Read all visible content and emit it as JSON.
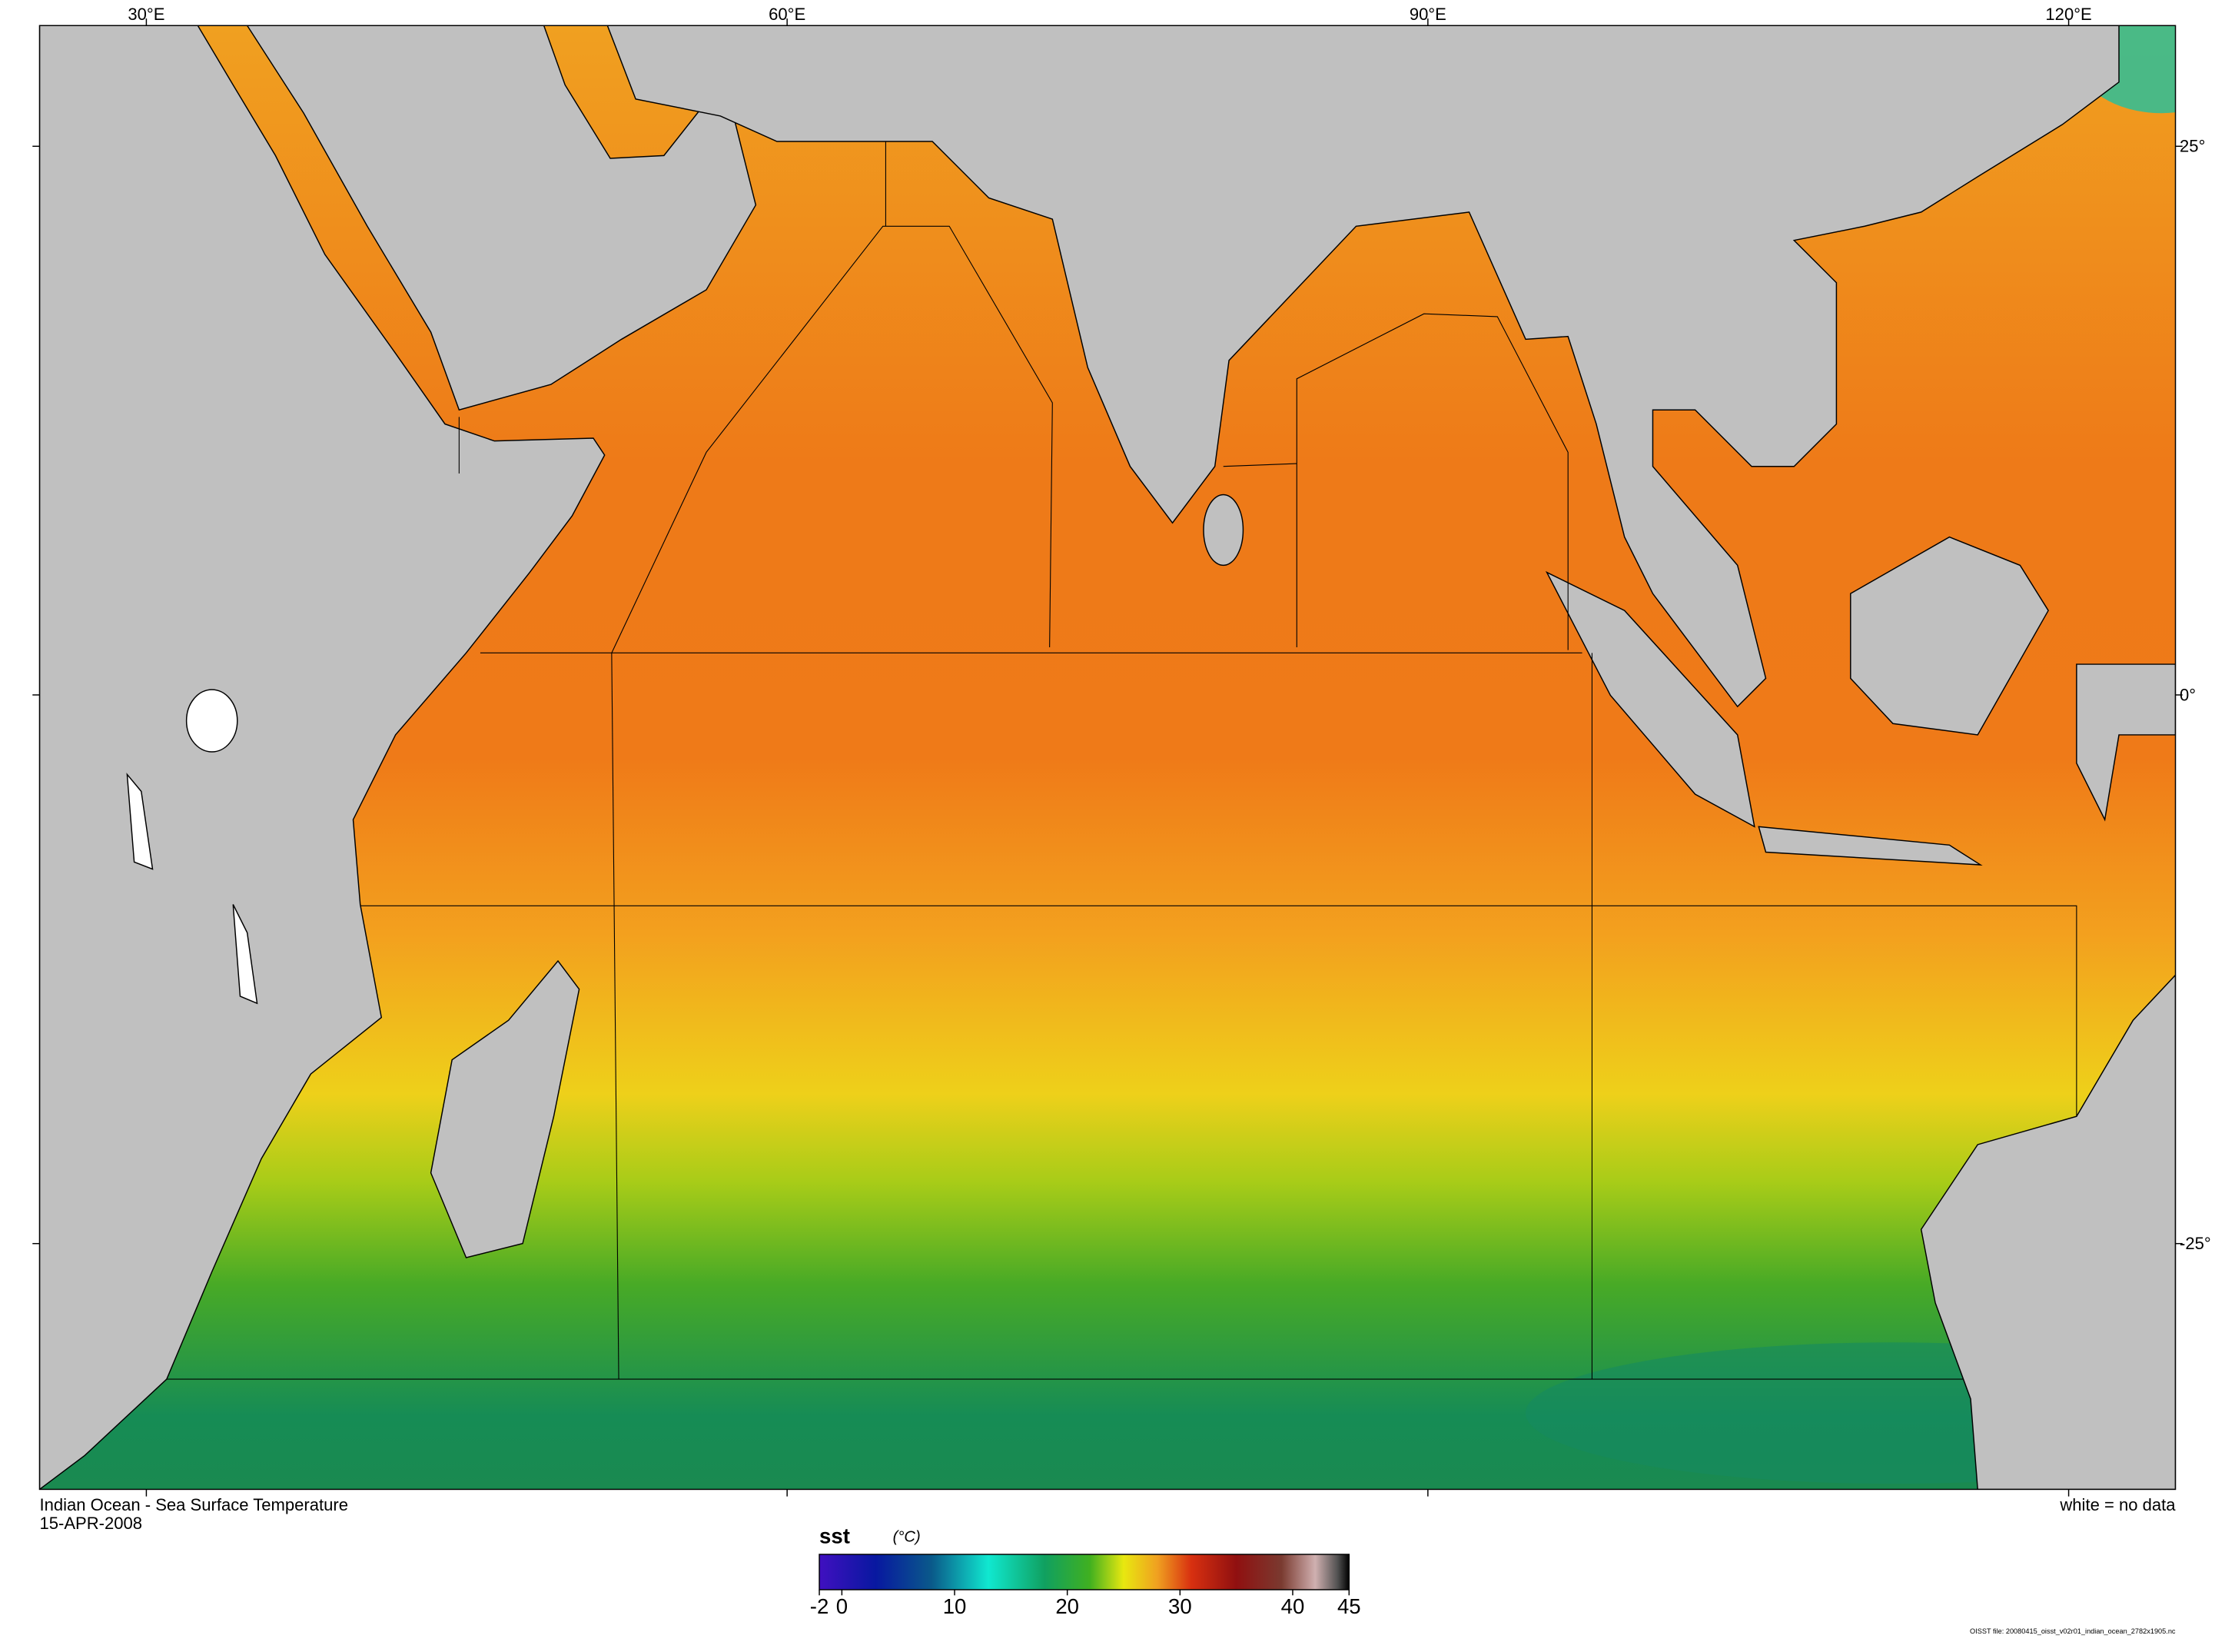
{
  "map": {
    "title": "Indian Ocean - Sea Surface Temperature",
    "date": "15-APR-2008",
    "note": "white = no data",
    "file": "OISST file: 20080415_oisst_v02r01_indian_ocean_2782x1905.nc",
    "xlim": [
      25,
      125
    ],
    "ylim": [
      30.5,
      -36.2
    ],
    "xticks": [
      {
        "value": 30,
        "label": "30°E"
      },
      {
        "value": 60,
        "label": "60°E"
      },
      {
        "value": 90,
        "label": "90°E"
      },
      {
        "value": 120,
        "label": "120°E"
      }
    ],
    "yticks": [
      {
        "value": 25,
        "label": "25°"
      },
      {
        "value": 0,
        "label": "0°"
      },
      {
        "value": -25,
        "label": "-25°"
      }
    ],
    "colorbar": {
      "variable": "sst",
      "units": "(°C)",
      "range": [
        -2,
        45
      ],
      "ticks": [
        -2,
        0,
        10,
        20,
        30,
        40,
        45
      ],
      "stops": [
        {
          "value": -2,
          "color": "#4010c0"
        },
        {
          "value": 3,
          "color": "#0818a0"
        },
        {
          "value": 8,
          "color": "#0a5a8a"
        },
        {
          "value": 13,
          "color": "#10e8d0"
        },
        {
          "value": 18,
          "color": "#10a060"
        },
        {
          "value": 22,
          "color": "#40b020"
        },
        {
          "value": 25,
          "color": "#e8e810"
        },
        {
          "value": 28,
          "color": "#f0a020"
        },
        {
          "value": 31,
          "color": "#d83010"
        },
        {
          "value": 35,
          "color": "#901010"
        },
        {
          "value": 39,
          "color": "#7a3a30"
        },
        {
          "value": 42,
          "color": "#d0b0b0"
        },
        {
          "value": 44,
          "color": "#505050"
        },
        {
          "value": 45,
          "color": "#000000"
        }
      ]
    }
  }
}
